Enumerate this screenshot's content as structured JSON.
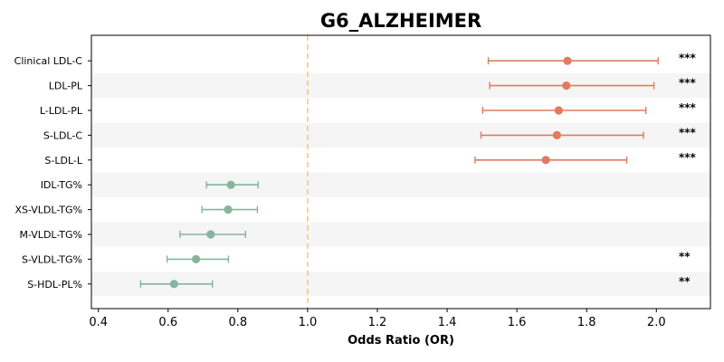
{
  "chart_data": {
    "type": "forest",
    "title": "G6_ALZHEIMER",
    "xlabel": "Odds Ratio (OR)",
    "ylabel": "",
    "xlim": [
      0.38,
      2.155
    ],
    "xticks": [
      0.4,
      0.6,
      0.8,
      1.0,
      1.2,
      1.4,
      1.6,
      1.8,
      2.0
    ],
    "xtick_labels": [
      "0.4",
      "0.6",
      "0.8",
      "1.0",
      "1.2",
      "1.4",
      "1.6",
      "1.8",
      "2.0"
    ],
    "reference_line": 1.0,
    "grid": false,
    "row_banding": true,
    "colors": {
      "increase": "#e07b62",
      "decrease": "#85b59c",
      "reference": "#f5c97a",
      "band": "#f5f5f5"
    },
    "rows": [
      {
        "label": "Clinical LDL-C",
        "or": 1.745,
        "lo": 1.518,
        "hi": 2.005,
        "sig": "***",
        "direction": "increase"
      },
      {
        "label": "LDL-PL",
        "or": 1.742,
        "lo": 1.522,
        "hi": 1.993,
        "sig": "***",
        "direction": "increase"
      },
      {
        "label": "L-LDL-PL",
        "or": 1.72,
        "lo": 1.502,
        "hi": 1.97,
        "sig": "***",
        "direction": "increase"
      },
      {
        "label": "S-LDL-C",
        "or": 1.715,
        "lo": 1.497,
        "hi": 1.963,
        "sig": "***",
        "direction": "increase"
      },
      {
        "label": "S-LDL-L",
        "or": 1.683,
        "lo": 1.48,
        "hi": 1.915,
        "sig": "***",
        "direction": "increase"
      },
      {
        "label": "IDL-TG%",
        "or": 0.78,
        "lo": 0.71,
        "hi": 0.858,
        "sig": "",
        "direction": "decrease"
      },
      {
        "label": "XS-VLDL-TG%",
        "or": 0.772,
        "lo": 0.697,
        "hi": 0.856,
        "sig": "",
        "direction": "decrease"
      },
      {
        "label": "M-VLDL-TG%",
        "or": 0.722,
        "lo": 0.634,
        "hi": 0.822,
        "sig": "",
        "direction": "decrease"
      },
      {
        "label": "S-VLDL-TG%",
        "or": 0.68,
        "lo": 0.597,
        "hi": 0.773,
        "sig": "**",
        "direction": "decrease"
      },
      {
        "label": "S-HDL-PL%",
        "or": 0.617,
        "lo": 0.521,
        "hi": 0.727,
        "sig": "**",
        "direction": "decrease"
      }
    ]
  }
}
